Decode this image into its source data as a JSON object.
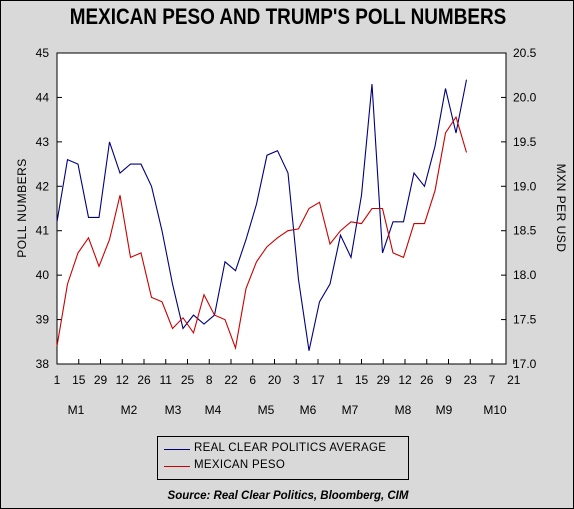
{
  "chart_data": {
    "type": "line",
    "title": "MEXICAN PESO AND TRUMP'S POLL NUMBERS",
    "ylabel_left": "POLL NUMBERS",
    "ylabel_right": "MXN PER USD",
    "source": "Source:  Real Clear Politics, Bloomberg, CIM",
    "y_left_range": [
      38,
      45
    ],
    "y_left_ticks": [
      "38",
      "39",
      "40",
      "41",
      "42",
      "43",
      "44",
      "45"
    ],
    "y_right_range": [
      17.0,
      20.5
    ],
    "y_right_ticks": [
      "17.0",
      "17.5",
      "18.0",
      "18.5",
      "19.0",
      "19.5",
      "20.0",
      "20.5"
    ],
    "x_day_ticks": [
      "1",
      "15",
      "29",
      "12",
      "26",
      "11",
      "25",
      "8",
      "22",
      "6",
      "20",
      "3",
      "17",
      "1",
      "15",
      "29",
      "12",
      "26",
      "9",
      "23",
      "7",
      "21"
    ],
    "x_month_ticks": [
      "M1",
      "M2",
      "M3",
      "M4",
      "M5",
      "M6",
      "M7",
      "M8",
      "M9",
      "M10"
    ],
    "legend_position": "bottom-center",
    "series": [
      {
        "name": "REAL CLEAR POLITICS AVERAGE",
        "axis": "left",
        "color": "#00007f",
        "values": [
          41.2,
          42.6,
          42.5,
          41.3,
          41.3,
          43.0,
          42.3,
          42.5,
          42.5,
          42.0,
          41.0,
          39.8,
          38.8,
          39.1,
          38.9,
          39.1,
          40.3,
          40.1,
          40.8,
          41.6,
          42.7,
          42.8,
          42.3,
          39.9,
          38.3,
          39.4,
          39.8,
          40.9,
          40.4,
          41.8,
          44.3,
          40.5,
          41.2,
          41.2,
          42.3,
          42.0,
          42.9,
          44.2,
          43.2,
          44.4
        ]
      },
      {
        "name": "MEXICAN PESO",
        "axis": "right",
        "color": "#cc0000",
        "values": [
          17.2,
          17.9,
          18.25,
          18.42,
          18.1,
          18.4,
          18.9,
          18.2,
          18.25,
          17.75,
          17.7,
          17.4,
          17.52,
          17.35,
          17.78,
          17.55,
          17.5,
          17.18,
          17.85,
          18.15,
          18.32,
          18.42,
          18.5,
          18.52,
          18.75,
          18.82,
          18.35,
          18.5,
          18.6,
          18.58,
          18.75,
          18.75,
          18.25,
          18.2,
          18.58,
          18.58,
          18.95,
          19.6,
          19.78,
          19.38
        ]
      }
    ]
  }
}
